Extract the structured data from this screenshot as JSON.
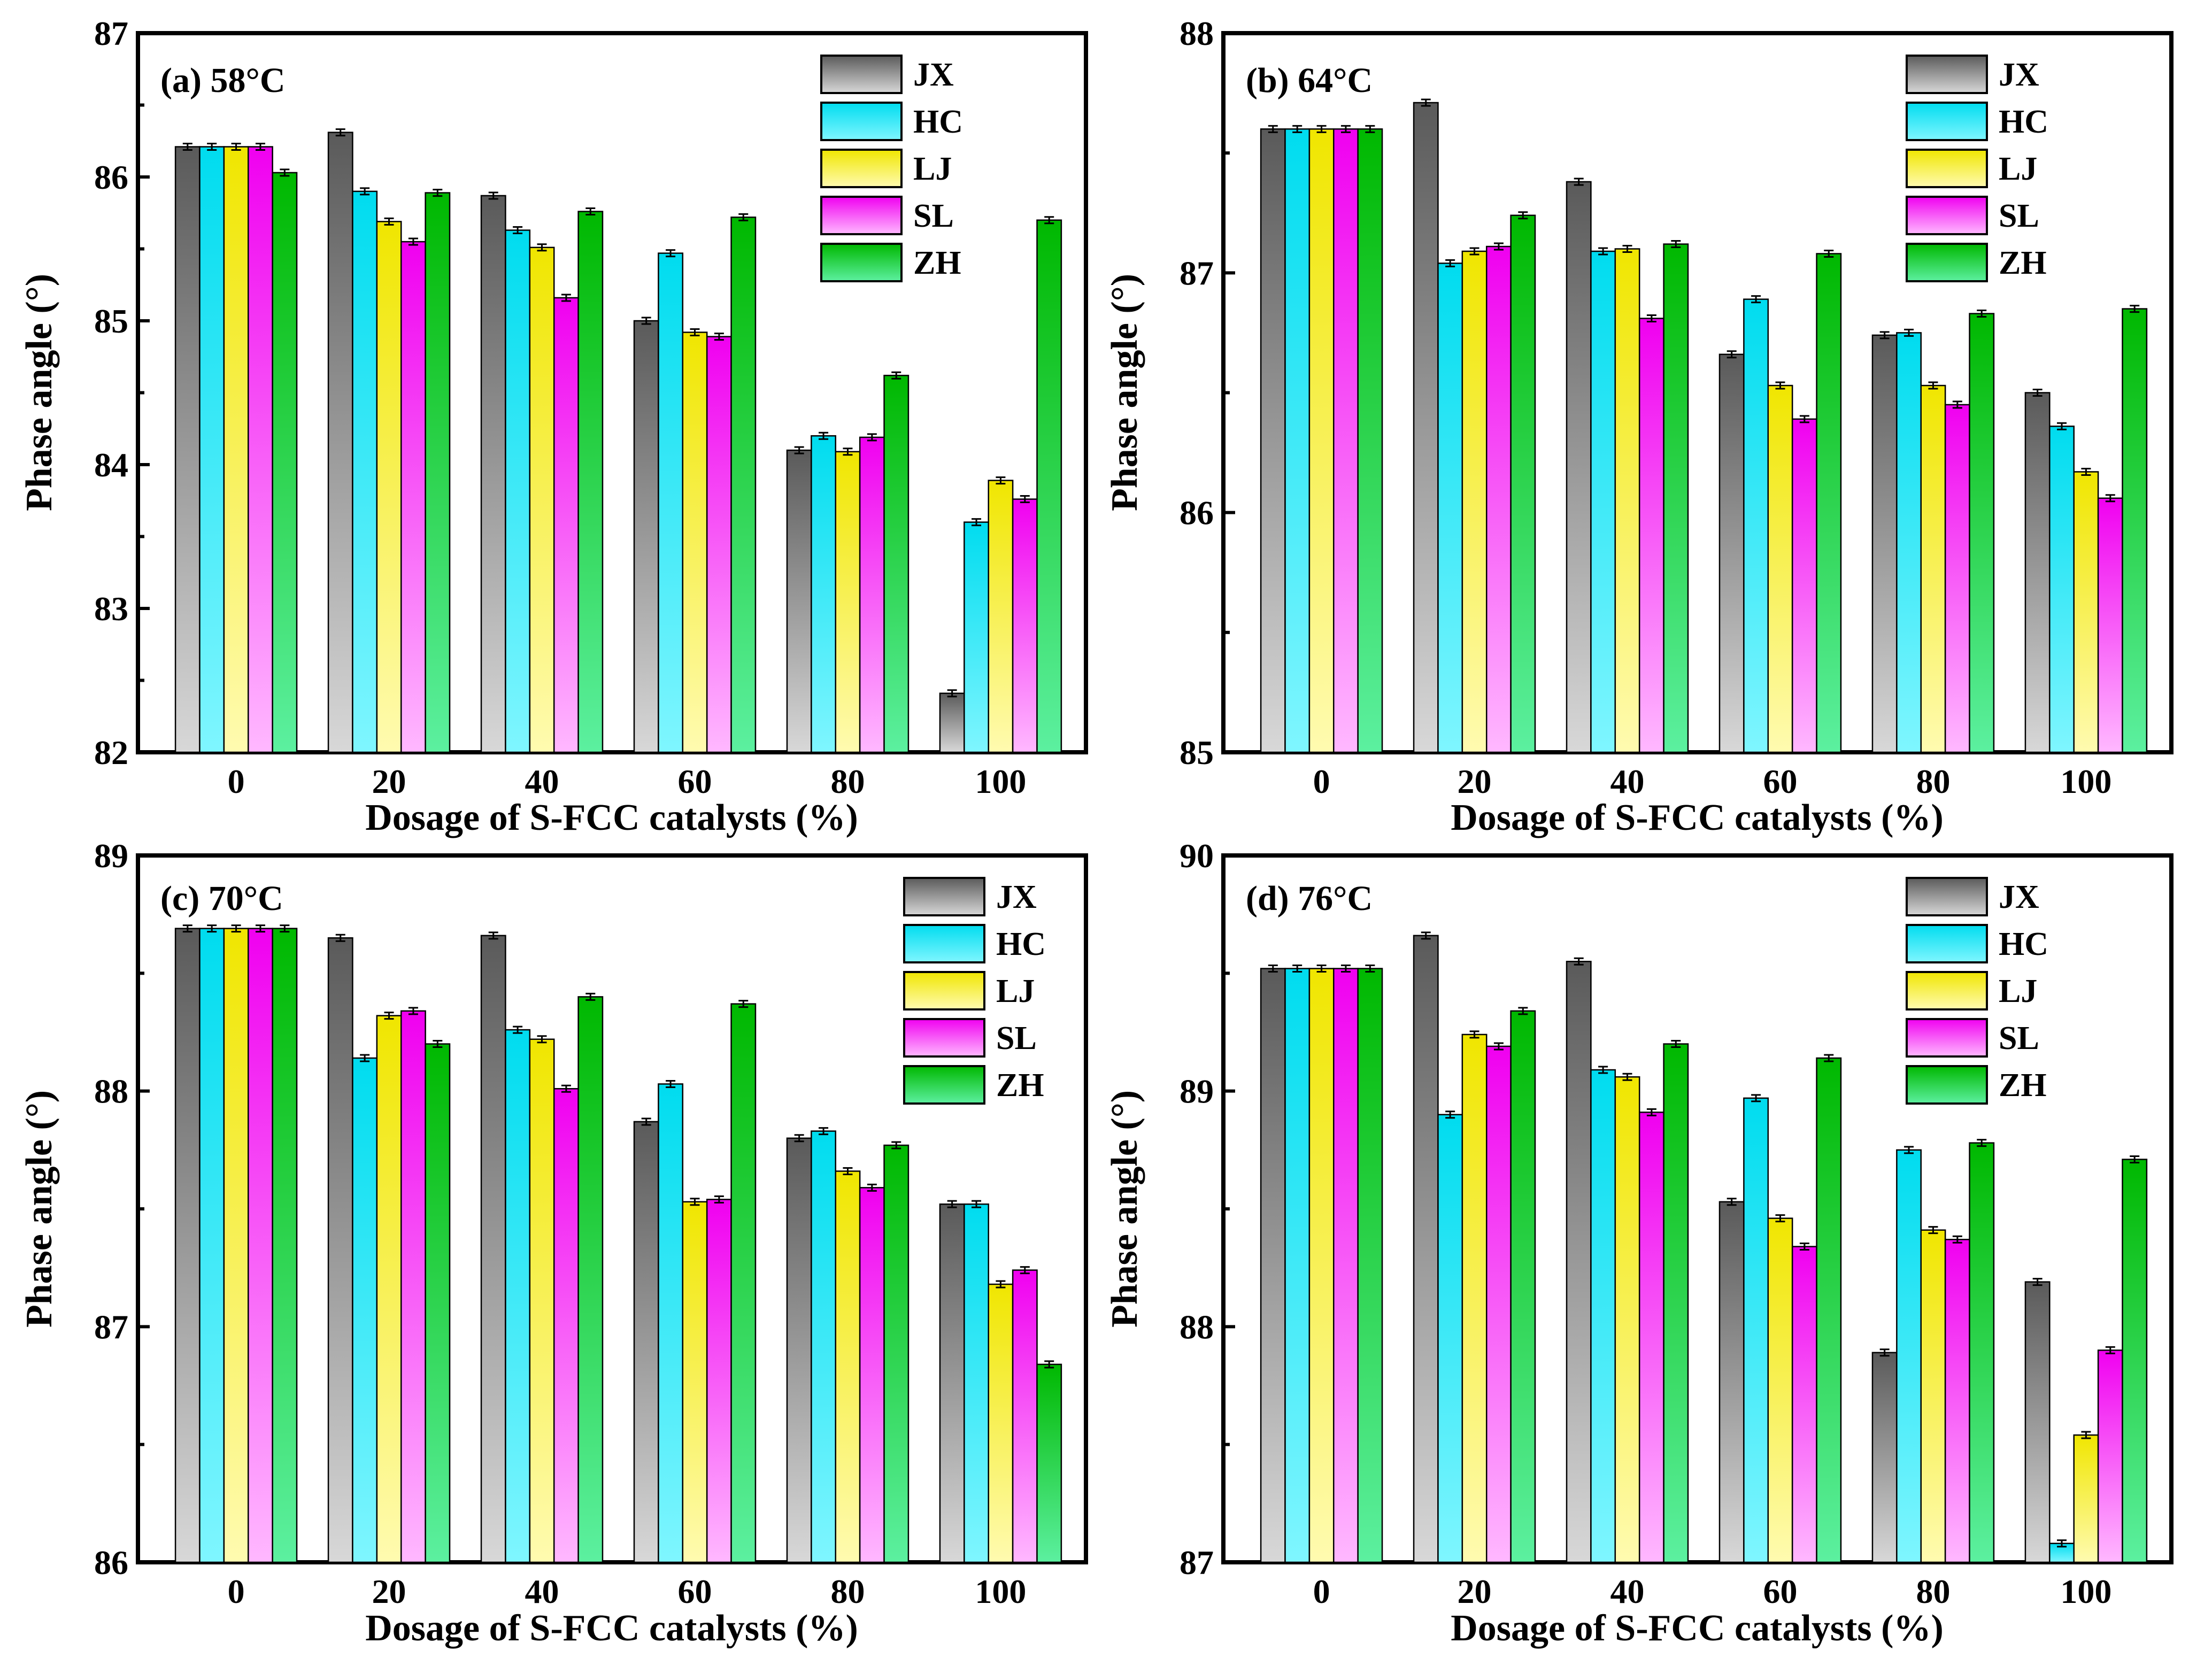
{
  "figure": {
    "xlabel": "Dosage of S-FCC catalysts (%)",
    "ylabel": "Phase angle (°)"
  },
  "legend_items": [
    "JX",
    "HC",
    "LJ",
    "SL",
    "ZH"
  ],
  "series_colors": {
    "JX": "#707070",
    "HC": "#00e5f5",
    "LJ": "#f2ea00",
    "SL": "#ff00ff",
    "ZH": "#00c000"
  },
  "chart_data": [
    {
      "type": "bar",
      "title": "(a) 58°C",
      "xlabel": "Dosage of S-FCC catalysts (%)",
      "ylabel": "Phase angle (°)",
      "categories": [
        "0",
        "20",
        "40",
        "60",
        "80",
        "100"
      ],
      "ylim": [
        82,
        87
      ],
      "yticks": [
        "82",
        "83",
        "84",
        "85",
        "86",
        "87"
      ],
      "legend": "top-right",
      "series": [
        {
          "name": "JX",
          "values": [
            86.21,
            86.31,
            85.87,
            85.0,
            84.1,
            82.41
          ]
        },
        {
          "name": "HC",
          "values": [
            86.21,
            85.9,
            85.63,
            85.47,
            84.2,
            83.6
          ]
        },
        {
          "name": "LJ",
          "values": [
            86.21,
            85.69,
            85.51,
            84.92,
            84.09,
            83.89
          ]
        },
        {
          "name": "SL",
          "values": [
            86.21,
            85.55,
            85.16,
            84.89,
            84.19,
            83.76
          ]
        },
        {
          "name": "ZH",
          "values": [
            86.03,
            85.89,
            85.76,
            85.72,
            84.62,
            85.7
          ]
        }
      ]
    },
    {
      "type": "bar",
      "title": "(b) 64°C",
      "xlabel": "Dosage of S-FCC catalysts (%)",
      "ylabel": "Phase angle (°)",
      "categories": [
        "0",
        "20",
        "40",
        "60",
        "80",
        "100"
      ],
      "ylim": [
        85,
        88
      ],
      "yticks": [
        "85",
        "86",
        "87",
        "88"
      ],
      "legend": "top-right",
      "series": [
        {
          "name": "JX",
          "values": [
            87.6,
            87.71,
            87.38,
            86.66,
            86.74,
            86.5
          ]
        },
        {
          "name": "HC",
          "values": [
            87.6,
            87.04,
            87.09,
            86.89,
            86.75,
            86.36
          ]
        },
        {
          "name": "LJ",
          "values": [
            87.6,
            87.09,
            87.1,
            86.53,
            86.53,
            86.17
          ]
        },
        {
          "name": "SL",
          "values": [
            87.6,
            87.11,
            86.81,
            86.39,
            86.45,
            86.06
          ]
        },
        {
          "name": "ZH",
          "values": [
            87.6,
            87.24,
            87.12,
            87.08,
            86.83,
            86.85
          ]
        }
      ]
    },
    {
      "type": "bar",
      "title": "(c) 70°C",
      "xlabel": "Dosage of S-FCC catalysts (%)",
      "ylabel": "Phase angle (°)",
      "categories": [
        "0",
        "20",
        "40",
        "60",
        "80",
        "100"
      ],
      "ylim": [
        86,
        89
      ],
      "yticks": [
        "86",
        "87",
        "88",
        "89"
      ],
      "legend": "top-right",
      "series": [
        {
          "name": "JX",
          "values": [
            88.69,
            88.65,
            88.66,
            87.87,
            87.8,
            87.52
          ]
        },
        {
          "name": "HC",
          "values": [
            88.69,
            88.14,
            88.26,
            88.03,
            87.83,
            87.52
          ]
        },
        {
          "name": "LJ",
          "values": [
            88.69,
            88.32,
            88.22,
            87.53,
            87.66,
            87.18
          ]
        },
        {
          "name": "SL",
          "values": [
            88.69,
            88.34,
            88.01,
            87.54,
            87.59,
            87.24
          ]
        },
        {
          "name": "ZH",
          "values": [
            88.69,
            88.2,
            88.4,
            88.37,
            87.77,
            86.84
          ]
        }
      ]
    },
    {
      "type": "bar",
      "title": "(d) 76°C",
      "xlabel": "Dosage of S-FCC catalysts (%)",
      "ylabel": "Phase angle (°)",
      "categories": [
        "0",
        "20",
        "40",
        "60",
        "80",
        "100"
      ],
      "ylim": [
        87,
        90
      ],
      "yticks": [
        "87",
        "88",
        "89",
        "90"
      ],
      "legend": "top-right",
      "series": [
        {
          "name": "JX",
          "values": [
            89.52,
            89.66,
            89.55,
            88.53,
            87.89,
            88.19
          ]
        },
        {
          "name": "HC",
          "values": [
            89.52,
            88.9,
            89.09,
            88.97,
            88.75,
            87.08
          ]
        },
        {
          "name": "LJ",
          "values": [
            89.52,
            89.24,
            89.06,
            88.46,
            88.41,
            87.54
          ]
        },
        {
          "name": "SL",
          "values": [
            89.52,
            89.19,
            88.91,
            88.34,
            88.37,
            87.9
          ]
        },
        {
          "name": "ZH",
          "values": [
            89.52,
            89.34,
            89.2,
            89.14,
            88.78,
            88.71
          ]
        }
      ]
    }
  ]
}
